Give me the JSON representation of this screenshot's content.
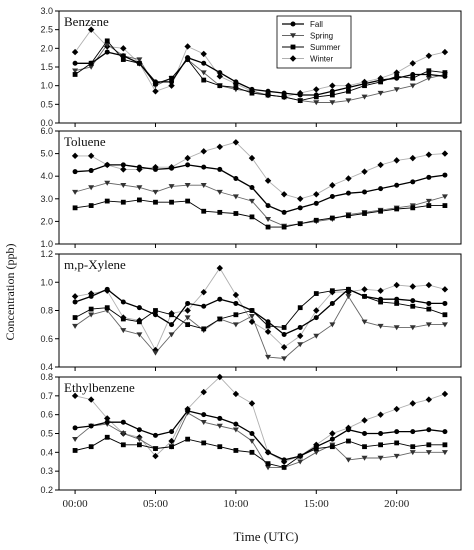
{
  "chart_data": {
    "type": "line",
    "ylabel": "Concentration (ppb)",
    "xlabel": "Time (UTC)",
    "xlim": [
      -1,
      24
    ],
    "xticks": [
      0,
      5,
      10,
      15,
      20
    ],
    "xtick_labels": [
      "00:00",
      "05:00",
      "10:00",
      "15:00",
      "20:00"
    ],
    "series_names": [
      "Fall",
      "Spring",
      "Summer",
      "Winter"
    ],
    "legend": {
      "position": "top-right",
      "panel": 0
    },
    "colors": {
      "Fall": "#000000",
      "Spring": "#555555",
      "Summer": "#000000",
      "Winter": "#aaaaaa"
    },
    "panels": [
      {
        "title": "Benzene",
        "ylim": [
          0.0,
          3.0
        ],
        "yticks": [
          0.0,
          0.5,
          1.0,
          1.5,
          2.0,
          2.5,
          3.0
        ],
        "ytick_labels": [
          "0.0",
          "0.5",
          "1.0",
          "1.5",
          "2.0",
          "2.5",
          "3.0"
        ],
        "x": [
          0,
          1,
          2,
          3,
          4,
          5,
          6,
          7,
          8,
          9,
          10,
          11,
          12,
          13,
          14,
          15,
          16,
          17,
          18,
          19,
          20,
          21,
          22,
          23
        ],
        "series": [
          {
            "name": "Fall",
            "marker": "circle",
            "values": [
              1.6,
              1.6,
              1.9,
              1.8,
              1.6,
              1.1,
              1.1,
              1.75,
              1.6,
              1.35,
              1.1,
              0.9,
              0.85,
              0.8,
              0.75,
              0.75,
              0.85,
              0.95,
              1.05,
              1.15,
              1.2,
              1.3,
              1.3,
              1.25
            ]
          },
          {
            "name": "Spring",
            "marker": "triangle",
            "values": [
              1.4,
              1.5,
              2.1,
              1.8,
              1.7,
              1.0,
              1.2,
              1.7,
              1.35,
              1.0,
              0.9,
              0.85,
              0.75,
              0.7,
              0.6,
              0.55,
              0.55,
              0.6,
              0.7,
              0.8,
              0.9,
              1.0,
              1.2,
              1.3
            ]
          },
          {
            "name": "Summer",
            "marker": "square",
            "values": [
              1.3,
              1.6,
              2.2,
              1.7,
              1.6,
              1.05,
              1.2,
              1.7,
              1.15,
              1.0,
              0.95,
              0.8,
              0.75,
              0.7,
              0.6,
              0.7,
              0.75,
              0.85,
              1.0,
              1.1,
              1.25,
              1.2,
              1.4,
              1.35
            ]
          },
          {
            "name": "Winter",
            "marker": "diamond",
            "values": [
              1.9,
              2.5,
              2.05,
              2.0,
              1.6,
              0.85,
              1.0,
              2.05,
              1.85,
              1.25,
              1.05,
              0.85,
              0.75,
              0.7,
              0.8,
              0.9,
              1.0,
              1.0,
              1.1,
              1.2,
              1.35,
              1.6,
              1.8,
              1.9
            ]
          }
        ]
      },
      {
        "title": "Toluene",
        "ylim": [
          1.0,
          6.0
        ],
        "yticks": [
          1.0,
          2.0,
          3.0,
          4.0,
          5.0,
          6.0
        ],
        "ytick_labels": [
          "1.0",
          "2.0",
          "3.0",
          "4.0",
          "5.0",
          "6.0"
        ],
        "x": [
          0,
          1,
          2,
          3,
          4,
          5,
          6,
          7,
          8,
          9,
          10,
          11,
          12,
          13,
          14,
          15,
          16,
          17,
          18,
          19,
          20,
          21,
          22,
          23
        ],
        "series": [
          {
            "name": "Fall",
            "marker": "circle",
            "values": [
              4.2,
              4.25,
              4.5,
              4.5,
              4.4,
              4.3,
              4.35,
              4.5,
              4.4,
              4.3,
              3.9,
              3.5,
              2.7,
              2.4,
              2.6,
              2.8,
              3.1,
              3.25,
              3.3,
              3.45,
              3.6,
              3.75,
              3.95,
              4.05
            ]
          },
          {
            "name": "Spring",
            "marker": "triangle",
            "values": [
              3.3,
              3.5,
              3.7,
              3.6,
              3.5,
              3.3,
              3.55,
              3.6,
              3.6,
              3.3,
              3.1,
              2.9,
              2.1,
              1.8,
              1.9,
              2.0,
              2.1,
              2.3,
              2.4,
              2.5,
              2.6,
              2.7,
              2.9,
              3.1
            ]
          },
          {
            "name": "Summer",
            "marker": "square",
            "values": [
              2.6,
              2.7,
              2.9,
              2.85,
              2.95,
              2.85,
              2.85,
              2.9,
              2.45,
              2.4,
              2.35,
              2.2,
              1.75,
              1.75,
              1.9,
              2.05,
              2.15,
              2.25,
              2.35,
              2.45,
              2.55,
              2.6,
              2.7,
              2.7
            ]
          },
          {
            "name": "Winter",
            "marker": "diamond",
            "values": [
              4.9,
              4.9,
              4.5,
              4.3,
              4.3,
              4.4,
              4.4,
              4.8,
              5.1,
              5.3,
              5.5,
              4.8,
              3.8,
              3.2,
              3.0,
              3.2,
              3.6,
              3.9,
              4.2,
              4.5,
              4.7,
              4.8,
              4.95,
              5.0
            ]
          }
        ]
      },
      {
        "title": "m,p-Xylene",
        "ylim": [
          0.4,
          1.2
        ],
        "yticks": [
          0.4,
          0.6,
          0.8,
          1.0,
          1.2
        ],
        "ytick_labels": [
          "0.4",
          "0.6",
          "0.8",
          "1.0",
          "1.2"
        ],
        "x": [
          0,
          1,
          2,
          3,
          4,
          5,
          6,
          7,
          8,
          9,
          10,
          11,
          12,
          13,
          14,
          15,
          16,
          17,
          18,
          19,
          20,
          21,
          22,
          23
        ],
        "series": [
          {
            "name": "Fall",
            "marker": "circle",
            "values": [
              0.86,
              0.9,
              0.95,
              0.86,
              0.82,
              0.77,
              0.7,
              0.85,
              0.83,
              0.88,
              0.85,
              0.8,
              0.72,
              0.63,
              0.68,
              0.75,
              0.85,
              0.95,
              0.9,
              0.88,
              0.88,
              0.87,
              0.85,
              0.85
            ]
          },
          {
            "name": "Spring",
            "marker": "triangle",
            "values": [
              0.69,
              0.77,
              0.8,
              0.66,
              0.63,
              0.5,
              0.63,
              0.75,
              0.66,
              0.74,
              0.7,
              0.76,
              0.47,
              0.46,
              0.56,
              0.62,
              0.7,
              0.9,
              0.72,
              0.69,
              0.68,
              0.68,
              0.7,
              0.7
            ]
          },
          {
            "name": "Summer",
            "marker": "square",
            "values": [
              0.75,
              0.81,
              0.82,
              0.74,
              0.72,
              0.8,
              0.77,
              0.7,
              0.67,
              0.74,
              0.77,
              0.8,
              0.69,
              0.68,
              0.82,
              0.92,
              0.94,
              0.95,
              0.9,
              0.86,
              0.85,
              0.83,
              0.81,
              0.77
            ]
          },
          {
            "name": "Winter",
            "marker": "diamond",
            "values": [
              0.9,
              0.92,
              0.94,
              0.75,
              0.73,
              0.52,
              0.78,
              0.8,
              0.93,
              1.1,
              0.91,
              0.72,
              0.65,
              0.54,
              0.62,
              0.8,
              0.93,
              0.93,
              0.95,
              0.94,
              0.98,
              0.97,
              0.98,
              0.95
            ]
          }
        ]
      },
      {
        "title": "Ethylbenzene",
        "ylim": [
          0.2,
          0.8
        ],
        "yticks": [
          0.2,
          0.3,
          0.4,
          0.5,
          0.6,
          0.7,
          0.8
        ],
        "ytick_labels": [
          "0.2",
          "0.3",
          "0.4",
          "0.5",
          "0.6",
          "0.7",
          "0.8"
        ],
        "x": [
          0,
          1,
          2,
          3,
          4,
          5,
          6,
          7,
          8,
          9,
          10,
          11,
          12,
          13,
          14,
          15,
          16,
          17,
          18,
          19,
          20,
          21,
          22,
          23
        ],
        "series": [
          {
            "name": "Fall",
            "marker": "circle",
            "values": [
              0.53,
              0.54,
              0.56,
              0.56,
              0.52,
              0.49,
              0.51,
              0.62,
              0.6,
              0.58,
              0.55,
              0.5,
              0.4,
              0.36,
              0.38,
              0.43,
              0.47,
              0.52,
              0.5,
              0.5,
              0.51,
              0.51,
              0.52,
              0.51
            ]
          },
          {
            "name": "Spring",
            "marker": "triangle",
            "values": [
              0.47,
              0.54,
              0.55,
              0.5,
              0.47,
              0.42,
              0.43,
              0.61,
              0.56,
              0.54,
              0.52,
              0.46,
              0.32,
              0.32,
              0.35,
              0.4,
              0.44,
              0.36,
              0.37,
              0.37,
              0.38,
              0.4,
              0.4,
              0.4
            ]
          },
          {
            "name": "Summer",
            "marker": "square",
            "values": [
              0.41,
              0.43,
              0.48,
              0.44,
              0.44,
              0.42,
              0.43,
              0.47,
              0.45,
              0.43,
              0.41,
              0.4,
              0.34,
              0.32,
              0.38,
              0.42,
              0.43,
              0.46,
              0.43,
              0.44,
              0.45,
              0.43,
              0.44,
              0.44
            ]
          },
          {
            "name": "Winter",
            "marker": "diamond",
            "values": [
              0.7,
              0.68,
              0.58,
              0.5,
              0.48,
              0.38,
              0.46,
              0.63,
              0.72,
              0.8,
              0.71,
              0.66,
              0.4,
              0.35,
              0.38,
              0.44,
              0.5,
              0.53,
              0.57,
              0.6,
              0.63,
              0.66,
              0.68,
              0.71
            ]
          }
        ]
      }
    ]
  }
}
